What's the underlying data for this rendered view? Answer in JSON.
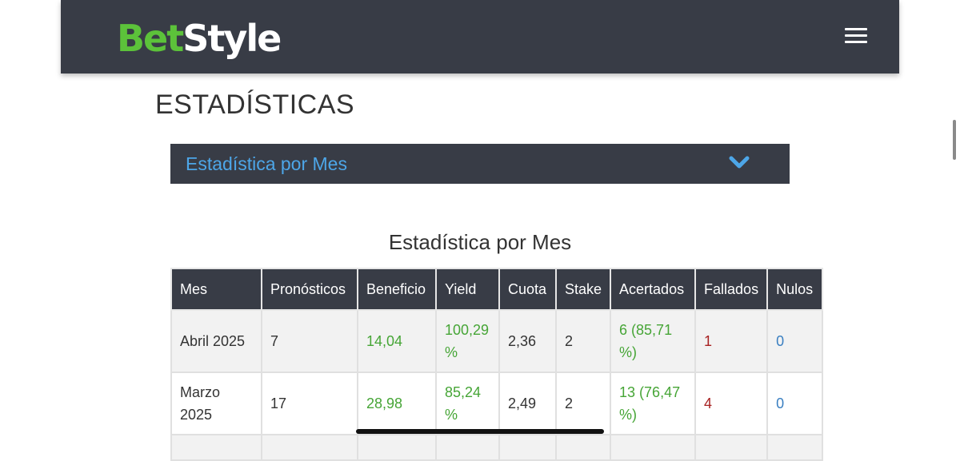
{
  "header": {
    "logo_part1": "Bet",
    "logo_part2": "Style",
    "menu_icon": "hamburger-menu-icon",
    "background": "#383c46",
    "logo_green": "#5cc23a"
  },
  "page": {
    "title": "ESTADÍSTICAS"
  },
  "accordion": {
    "label": "Estadística por Mes",
    "icon": "chevron-down-icon",
    "label_color": "#4da6e8"
  },
  "table": {
    "title": "Estadística por Mes",
    "headers": [
      "Mes",
      "Pronósticos",
      "Beneficio",
      "Yield",
      "Cuota",
      "Stake",
      "Acertados",
      "Fallados",
      "Nulos"
    ],
    "rows": [
      {
        "mes": "Abril 2025",
        "pronosticos": "7",
        "beneficio": "14,04",
        "yield": "100,29 %",
        "cuota": "2,36",
        "stake": "2",
        "acertados": "6 (85,71 %)",
        "fallados": "1",
        "nulos": "0"
      },
      {
        "mes": "Marzo 2025",
        "pronosticos": "17",
        "beneficio": "28,98",
        "yield": "85,24 %",
        "cuota": "2,49",
        "stake": "2",
        "acertados": "13 (76,47 %)",
        "fallados": "4",
        "nulos": "0"
      }
    ],
    "colors": {
      "positive": "#46a536",
      "negative": "#a82222",
      "neutral": "#3a7fc1"
    }
  }
}
